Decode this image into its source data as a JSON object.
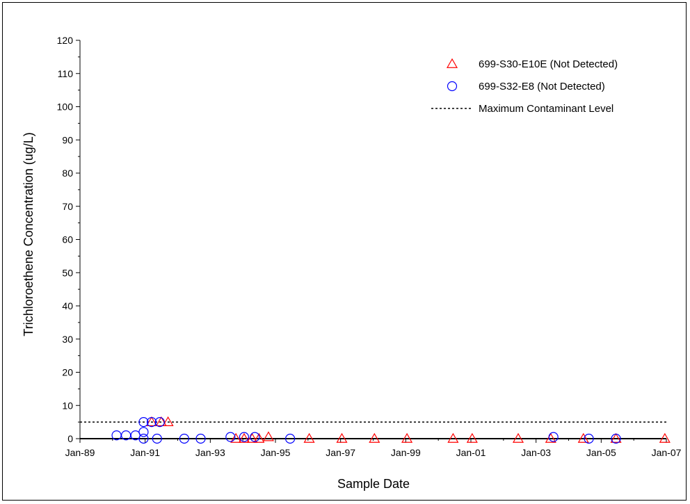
{
  "chart_data": {
    "type": "scatter",
    "xlabel": "Sample Date",
    "ylabel": "Trichloroethene Concentration (ug/L)",
    "x_ticks": [
      "Jan-89",
      "Jan-91",
      "Jan-93",
      "Jan-95",
      "Jan-97",
      "Jan-99",
      "Jan-01",
      "Jan-03",
      "Jan-05",
      "Jan-07"
    ],
    "xlim": [
      "1989-01-01",
      "2007-01-01"
    ],
    "ylim": [
      0,
      120
    ],
    "y_ticks": [
      0,
      10,
      20,
      30,
      40,
      50,
      60,
      70,
      80,
      90,
      100,
      110,
      120
    ],
    "grid": false,
    "legend_position": "top-right",
    "mcl": {
      "name": "Maximum Contaminant Level",
      "value": 5,
      "style": "dotted",
      "color": "#000000"
    },
    "series": [
      {
        "name": "699-S30-E10E (Not Detected)",
        "marker": "triangle",
        "color": "#ff0000",
        "points": [
          {
            "x": "1991-03-15",
            "y": 5
          },
          {
            "x": "1991-07-01",
            "y": 5
          },
          {
            "x": "1991-09-15",
            "y": 5
          },
          {
            "x": "1993-10-15",
            "y": 0
          },
          {
            "x": "1994-01-15",
            "y": 0
          },
          {
            "x": "1994-04-15",
            "y": 0
          },
          {
            "x": "1994-07-01",
            "y": 0
          },
          {
            "x": "1994-10-15",
            "y": 0.5
          },
          {
            "x": "1996-01-15",
            "y": 0
          },
          {
            "x": "1997-01-15",
            "y": 0
          },
          {
            "x": "1998-01-15",
            "y": 0
          },
          {
            "x": "1999-01-15",
            "y": 0
          },
          {
            "x": "2000-06-15",
            "y": 0
          },
          {
            "x": "2001-01-15",
            "y": 0
          },
          {
            "x": "2002-06-15",
            "y": 0
          },
          {
            "x": "2003-06-15",
            "y": 0
          },
          {
            "x": "2004-06-15",
            "y": 0
          },
          {
            "x": "2005-06-15",
            "y": 0
          },
          {
            "x": "2006-12-15",
            "y": 0
          }
        ]
      },
      {
        "name": "699-S32-E8 (Not Detected)",
        "marker": "circle",
        "color": "#0000ff",
        "points": [
          {
            "x": "1990-02-15",
            "y": 1
          },
          {
            "x": "1990-06-01",
            "y": 1
          },
          {
            "x": "1990-09-15",
            "y": 1
          },
          {
            "x": "1990-12-15",
            "y": 5
          },
          {
            "x": "1990-12-15",
            "y": 2
          },
          {
            "x": "1990-12-15",
            "y": 0
          },
          {
            "x": "1991-03-15",
            "y": 5
          },
          {
            "x": "1991-06-15",
            "y": 5
          },
          {
            "x": "1991-05-15",
            "y": 0
          },
          {
            "x": "1992-03-15",
            "y": 0
          },
          {
            "x": "1992-09-15",
            "y": 0
          },
          {
            "x": "1993-08-15",
            "y": 0.5
          },
          {
            "x": "1994-01-15",
            "y": 0.5
          },
          {
            "x": "1994-05-15",
            "y": 0.5
          },
          {
            "x": "1995-06-15",
            "y": 0
          },
          {
            "x": "2003-07-15",
            "y": 0.5
          },
          {
            "x": "2004-08-15",
            "y": 0
          },
          {
            "x": "2005-06-15",
            "y": 0
          }
        ]
      }
    ]
  }
}
